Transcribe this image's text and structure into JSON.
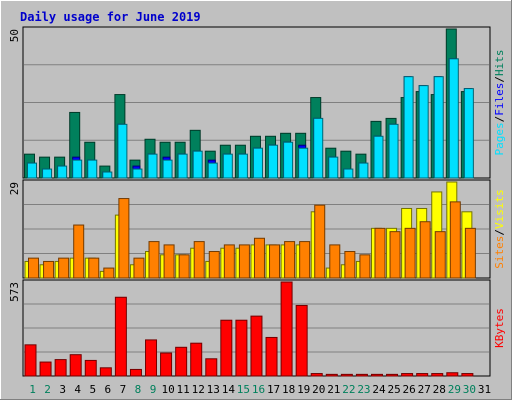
{
  "title": "Daily usage for June 2019",
  "colors": {
    "background": "#C0C0C0",
    "hits": "#00805C",
    "files": "#0000FF",
    "pages": "#00E0FF",
    "visits": "#FFFF00",
    "sites": "#FF8000",
    "kbytes": "#FF0000",
    "weekday": "#000000",
    "weekend": "#00805C",
    "slash": "#000000"
  },
  "chart_data": [
    {
      "type": "bar",
      "legend": [
        {
          "name": "Hits",
          "color": "#00805C"
        },
        {
          "name": "Files",
          "color": "#0000FF"
        },
        {
          "name": "Pages",
          "color": "#00E0FF"
        }
      ],
      "ymax_label": "50",
      "ylim": [
        0,
        50
      ],
      "categories": [
        "1",
        "2",
        "3",
        "4",
        "5",
        "6",
        "7",
        "8",
        "9",
        "10",
        "11",
        "12",
        "13",
        "14",
        "15",
        "16",
        "17",
        "18",
        "19",
        "20",
        "21",
        "22",
        "23",
        "24",
        "25",
        "26",
        "27",
        "28",
        "29",
        "30",
        "31"
      ],
      "series": [
        {
          "name": "Hits",
          "values": [
            8,
            7,
            7,
            22,
            12,
            4,
            28,
            6,
            13,
            12,
            12,
            16,
            9,
            11,
            11,
            14,
            14,
            15,
            15,
            27,
            10,
            9,
            8,
            19,
            20,
            27,
            29,
            28,
            50,
            29,
            0
          ]
        },
        {
          "name": "Files",
          "values": [
            5,
            3,
            4,
            7,
            6,
            2,
            18,
            4,
            8,
            7,
            8,
            9,
            6,
            8,
            8,
            10,
            11,
            12,
            11,
            20,
            7,
            3,
            5,
            14,
            18,
            34,
            31,
            34,
            40,
            30,
            0
          ]
        },
        {
          "name": "Pages",
          "values": [
            5,
            3,
            4,
            6,
            6,
            2,
            18,
            3,
            8,
            6,
            8,
            9,
            5,
            8,
            8,
            10,
            11,
            12,
            10,
            20,
            7,
            3,
            5,
            14,
            18,
            34,
            31,
            34,
            40,
            30,
            0
          ]
        }
      ]
    },
    {
      "type": "bar",
      "legend": [
        {
          "name": "Visits",
          "color": "#FFFF00"
        },
        {
          "name": "Sites",
          "color": "#FF8000"
        }
      ],
      "ymax_label": "29",
      "ylim": [
        0,
        29
      ],
      "categories": [
        "1",
        "2",
        "3",
        "4",
        "5",
        "6",
        "7",
        "8",
        "9",
        "10",
        "11",
        "12",
        "13",
        "14",
        "15",
        "16",
        "17",
        "18",
        "19",
        "20",
        "21",
        "22",
        "23",
        "24",
        "25",
        "26",
        "27",
        "28",
        "29",
        "30",
        "31"
      ],
      "series": [
        {
          "name": "Visits",
          "values": [
            5,
            4,
            5,
            6,
            6,
            2,
            19,
            4,
            8,
            7,
            7,
            9,
            5,
            9,
            9,
            10,
            10,
            10,
            10,
            20,
            3,
            4,
            5,
            15,
            15,
            21,
            21,
            26,
            29,
            20,
            0
          ]
        },
        {
          "name": "Sites",
          "values": [
            6,
            5,
            6,
            16,
            6,
            3,
            24,
            6,
            11,
            10,
            7,
            11,
            8,
            10,
            10,
            12,
            10,
            11,
            11,
            22,
            10,
            8,
            7,
            15,
            14,
            15,
            17,
            14,
            23,
            15,
            0
          ]
        }
      ]
    },
    {
      "type": "bar",
      "legend": [
        {
          "name": "KBytes",
          "color": "#FF0000"
        }
      ],
      "ymax_label": "573",
      "ylim": [
        0,
        573
      ],
      "categories": [
        "1",
        "2",
        "3",
        "4",
        "5",
        "6",
        "7",
        "8",
        "9",
        "10",
        "11",
        "12",
        "13",
        "14",
        "15",
        "16",
        "17",
        "18",
        "19",
        "20",
        "21",
        "22",
        "23",
        "24",
        "25",
        "26",
        "27",
        "28",
        "29",
        "30",
        "31"
      ],
      "series": [
        {
          "name": "KBytes",
          "values": [
            190,
            85,
            100,
            130,
            95,
            50,
            480,
            40,
            220,
            140,
            175,
            200,
            105,
            340,
            340,
            365,
            235,
            573,
            430,
            15,
            10,
            10,
            10,
            10,
            10,
            15,
            15,
            15,
            20,
            15,
            0
          ]
        }
      ]
    }
  ],
  "x_axis": {
    "labels": [
      "1",
      "2",
      "3",
      "4",
      "5",
      "6",
      "7",
      "8",
      "9",
      "10",
      "11",
      "12",
      "13",
      "14",
      "15",
      "16",
      "17",
      "18",
      "19",
      "20",
      "21",
      "22",
      "23",
      "24",
      "25",
      "26",
      "27",
      "28",
      "29",
      "30",
      "31"
    ],
    "weekend_days": [
      1,
      2,
      8,
      9,
      15,
      16,
      22,
      23,
      29,
      30
    ]
  }
}
